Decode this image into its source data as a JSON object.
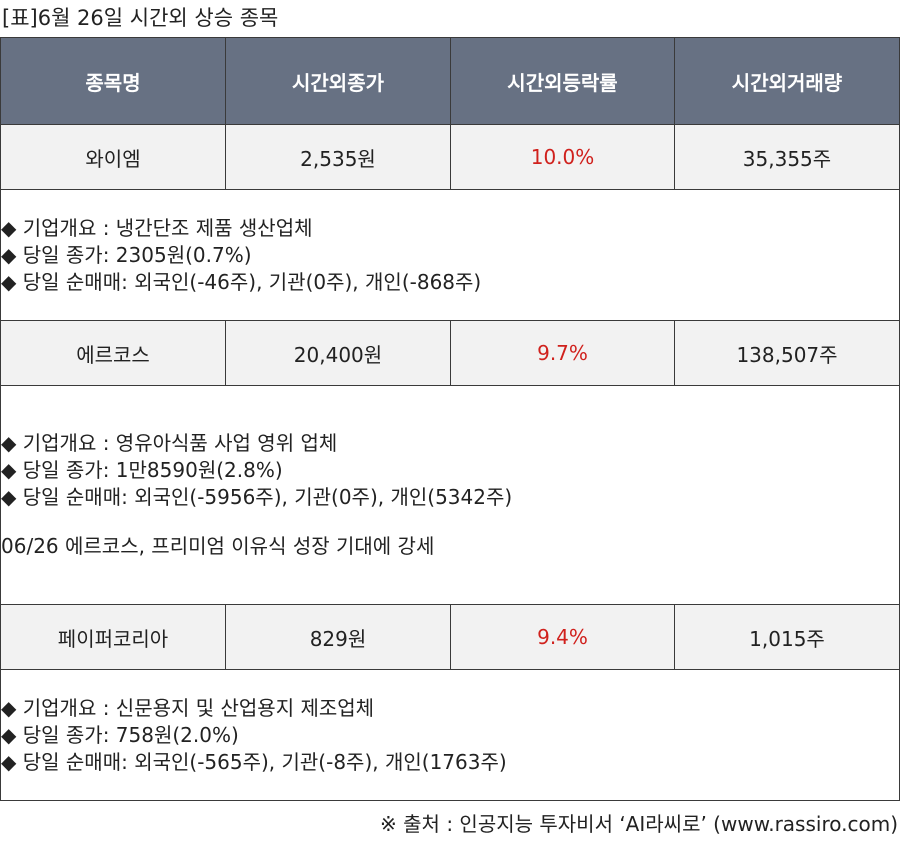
{
  "caption": "[표]6월 26일 시간외 상승 종목",
  "headers": [
    "종목명",
    "시간외종가",
    "시간외등락률",
    "시간외거래량"
  ],
  "rows": [
    {
      "name": "와이엠",
      "price": "2,535원",
      "change": "10.0%",
      "volume": "35,355주",
      "info": [
        "◆ 기업개요 : 냉간단조 제품 생산업체",
        "◆ 당일 종가: 2305원(0.7%)",
        "◆ 당일 순매매: 외국인(-46주), 기관(0주), 개인(-868주)"
      ],
      "news": ""
    },
    {
      "name": "에르코스",
      "price": "20,400원",
      "change": "9.7%",
      "volume": "138,507주",
      "info": [
        "◆ 기업개요 : 영유아식품 사업 영위 업체",
        "◆ 당일 종가: 1만8590원(2.8%)",
        "◆ 당일 순매매: 외국인(-5956주), 기관(0주), 개인(5342주)"
      ],
      "news": "06/26 에르코스, 프리미엄 이유식 성장 기대에 강세"
    },
    {
      "name": "페이퍼코리아",
      "price": "829원",
      "change": "9.4%",
      "volume": "1,015주",
      "info": [
        "◆ 기업개요 : 신문용지 및 산업용지 제조업체",
        "◆ 당일 종가: 758원(2.0%)",
        "◆ 당일 순매매: 외국인(-565주), 기관(-8주), 개인(1763주)"
      ],
      "news": ""
    }
  ],
  "source": "※ 출처 : 인공지능 투자비서 ‘AI라씨로’ (www.rassiro.com)",
  "colors": {
    "header_bg": "#677183",
    "row_bg": "#f2f2f2",
    "up": "#d0211d"
  }
}
